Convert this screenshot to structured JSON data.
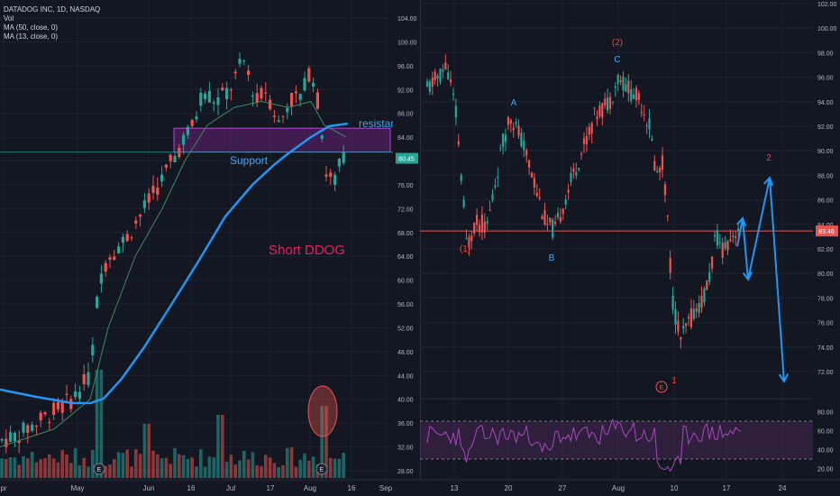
{
  "left_chart": {
    "legend": {
      "symbol_line": "DATADOG INC, 1D, NASDAQ",
      "volume_label": "Vol",
      "ma50_label": "MA (50, close, 0)",
      "ma13_label": "MA (13, close, 0)"
    },
    "price_axis_ticks": [
      "104.00",
      "100.00",
      "96.00",
      "92.00",
      "88.00",
      "84.00",
      "80.00",
      "76.00",
      "72.00",
      "68.00",
      "64.00",
      "60.00",
      "56.00",
      "52.00",
      "48.00",
      "44.00",
      "40.00",
      "36.00",
      "32.00",
      "28.00"
    ],
    "time_axis_ticks": [
      "pr",
      "May",
      "Jun",
      "16",
      "Jul",
      "17",
      "Aug",
      "16",
      "Sep"
    ],
    "price_tag": "80.45",
    "annotations": {
      "support": "Support",
      "resistance": "resistance",
      "short": "Short DDOG"
    },
    "earnings_marker": "E",
    "colors": {
      "up": "#26a69a",
      "down": "#ef5350",
      "ma50": "#2196f3",
      "ma13": "#3e8a5c",
      "zone": "#9c27b0",
      "short_text": "#e91e63"
    }
  },
  "right_chart": {
    "price_axis_ticks": [
      "102.00",
      "100.00",
      "98.00",
      "96.00",
      "94.00",
      "92.00",
      "90.00",
      "88.00",
      "86.00",
      "84.00",
      "82.00",
      "80.00",
      "78.00",
      "76.00",
      "74.00",
      "72.00"
    ],
    "rsi_axis_ticks": [
      "80.00",
      "60.00",
      "40.00",
      "20.00"
    ],
    "time_axis_ticks": [
      "13",
      "20",
      "27",
      "Aug",
      "10",
      "17",
      "24"
    ],
    "price_tag": "83.46",
    "wave_labels": {
      "w1_paren": "(1)",
      "wa": "A",
      "wb": "B",
      "w2_paren": "(2)",
      "wc": "C",
      "w1": "1",
      "w2": "2"
    },
    "earnings_marker": "E",
    "colors": {
      "up": "#26a69a",
      "down": "#ef5350",
      "rsi": "#ab47bc",
      "arrow": "#2196f3",
      "red_label": "#f44336",
      "blue_label": "#42a5f5"
    }
  },
  "chart_data": [
    {
      "type": "candlestick",
      "title": "DATADOG INC, 1D, NASDAQ",
      "ylim": [
        28,
        104
      ],
      "x_ticks": [
        "pr",
        "May",
        "Jun",
        "16",
        "Jul",
        "17",
        "Aug",
        "16",
        "Sep"
      ],
      "indicators": [
        "Vol",
        "MA (50, close, 0)",
        "MA (13, close, 0)"
      ],
      "last_price": 80.45,
      "support_zone": [
        81.5,
        84.5
      ],
      "resistance_level": 84.5,
      "approx_path_close": [
        30,
        33,
        36,
        38,
        41,
        43,
        47,
        50,
        58,
        64,
        66,
        70,
        73,
        76,
        79,
        82,
        85,
        86,
        92,
        90,
        94,
        93,
        88,
        92,
        95,
        88,
        90,
        85,
        78,
        75,
        77,
        80
      ]
    },
    {
      "type": "candlestick",
      "ylim": [
        70,
        102
      ],
      "x_ticks": [
        "13",
        "20",
        "27",
        "Aug",
        "10",
        "17",
        "24"
      ],
      "last_price": 83.46,
      "horizontal_level": 83.46,
      "wave_points": [
        {
          "label": "(1)",
          "price": 83.3
        },
        {
          "label": "A",
          "price": 93.0
        },
        {
          "label": "B",
          "price": 83.5
        },
        {
          "label": "(2)",
          "price": 96.5
        },
        {
          "label": "C",
          "price": 96.0
        },
        {
          "label": "1",
          "price": 73.5
        },
        {
          "label": "2",
          "price": 87.8
        }
      ],
      "rsi": {
        "ylim": [
          10,
          90
        ],
        "band": [
          30,
          70
        ],
        "levels": [
          80,
          60,
          40,
          20
        ]
      },
      "projection_prices": [
        82.0,
        84.5,
        79.5,
        87.8,
        71.0
      ]
    }
  ]
}
